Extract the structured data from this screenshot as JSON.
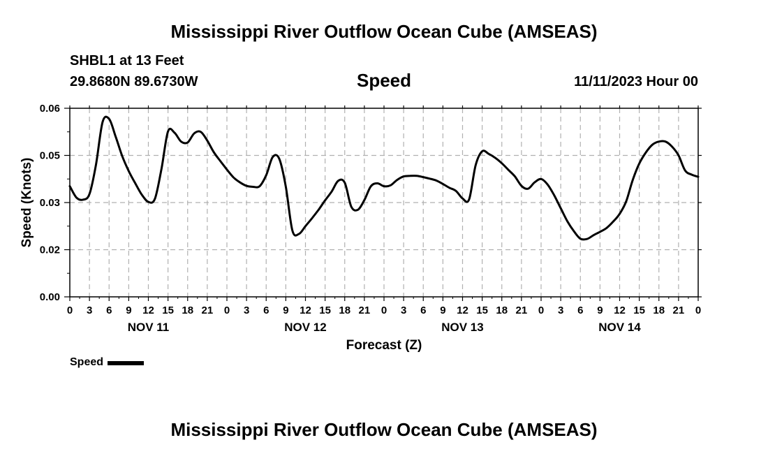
{
  "header": {
    "title": "Mississippi River Outflow Ocean Cube (AMSEAS)",
    "station": "SHBL1 at 13 Feet",
    "coordinates": "29.8680N  89.6730W",
    "variable": "Speed",
    "datetime": "11/11/2023 Hour 00"
  },
  "legend": {
    "label": "Speed"
  },
  "footer": {
    "title": "Mississippi River Outflow Ocean Cube (AMSEAS)"
  },
  "colors": {
    "line": "#000000",
    "grid": "#b0b0b0",
    "background": "#ffffff"
  },
  "chart_data": {
    "type": "line",
    "title": "Speed",
    "xlabel": "Forecast (Z)",
    "ylabel": "Speed (Knots)",
    "xlim": [
      0,
      96
    ],
    "ylim": [
      0,
      0.06
    ],
    "grid": true,
    "y_ticks": [
      {
        "value": 0,
        "label": "0.00"
      },
      {
        "value": 0.015,
        "label": "0.02"
      },
      {
        "value": 0.03,
        "label": "0.03"
      },
      {
        "value": 0.045,
        "label": "0.05"
      },
      {
        "value": 0.06,
        "label": "0.06"
      }
    ],
    "x_ticks": [
      0,
      3,
      6,
      9,
      12,
      15,
      18,
      21,
      24,
      27,
      30,
      33,
      36,
      39,
      42,
      45,
      48,
      51,
      54,
      57,
      60,
      63,
      66,
      69,
      72,
      75,
      78,
      81,
      84,
      87,
      90,
      93,
      96
    ],
    "x_tick_labels": [
      "0",
      "3",
      "6",
      "9",
      "12",
      "15",
      "18",
      "21",
      "0",
      "3",
      "6",
      "9",
      "12",
      "15",
      "18",
      "21",
      "0",
      "3",
      "6",
      "9",
      "12",
      "15",
      "18",
      "21",
      "0",
      "3",
      "6",
      "9",
      "12",
      "15",
      "18",
      "21",
      "0"
    ],
    "day_labels": [
      {
        "at": 12,
        "label": "NOV 11"
      },
      {
        "at": 36,
        "label": "NOV 12"
      },
      {
        "at": 60,
        "label": "NOV 13"
      },
      {
        "at": 84,
        "label": "NOV 14"
      }
    ],
    "series": [
      {
        "name": "Speed",
        "x": [
          0,
          1,
          2,
          3,
          4,
          5,
          6,
          7,
          8,
          9,
          10,
          11,
          12,
          13,
          14,
          15,
          16,
          17,
          18,
          19,
          20,
          21,
          22,
          23,
          24,
          25,
          26,
          27,
          28,
          29,
          30,
          31,
          32,
          33,
          34,
          35,
          36,
          37,
          38,
          39,
          40,
          41,
          42,
          43,
          44,
          45,
          46,
          47,
          48,
          49,
          50,
          51,
          52,
          53,
          54,
          55,
          56,
          57,
          58,
          59,
          60,
          61,
          62,
          63,
          64,
          65,
          66,
          67,
          68,
          69,
          70,
          71,
          72,
          73,
          74,
          75,
          76,
          77,
          78,
          79,
          80,
          81,
          82,
          83,
          84,
          85,
          86,
          87,
          88,
          89,
          90,
          91,
          92,
          93,
          94,
          95,
          96
        ],
        "values": [
          0.0352,
          0.0316,
          0.0309,
          0.0327,
          0.0421,
          0.0556,
          0.0566,
          0.051,
          0.0448,
          0.04,
          0.0361,
          0.0325,
          0.0302,
          0.0312,
          0.0407,
          0.0526,
          0.0522,
          0.0494,
          0.0491,
          0.052,
          0.0525,
          0.0497,
          0.046,
          0.0432,
          0.0405,
          0.038,
          0.0364,
          0.0353,
          0.035,
          0.0352,
          0.0387,
          0.0445,
          0.0439,
          0.035,
          0.0211,
          0.02,
          0.0225,
          0.025,
          0.0277,
          0.0307,
          0.0335,
          0.0369,
          0.0363,
          0.0287,
          0.0277,
          0.0308,
          0.0352,
          0.0361,
          0.0352,
          0.0355,
          0.0372,
          0.0383,
          0.0385,
          0.0385,
          0.0381,
          0.0376,
          0.037,
          0.0359,
          0.0347,
          0.0337,
          0.0313,
          0.031,
          0.0419,
          0.0463,
          0.0455,
          0.0442,
          0.0425,
          0.0404,
          0.0383,
          0.0353,
          0.0344,
          0.0364,
          0.0375,
          0.0357,
          0.0323,
          0.0282,
          0.0241,
          0.0209,
          0.0185,
          0.0184,
          0.0196,
          0.0207,
          0.0219,
          0.0239,
          0.0264,
          0.0304,
          0.0372,
          0.0424,
          0.0459,
          0.0484,
          0.0494,
          0.0494,
          0.0478,
          0.045,
          0.0402,
          0.0389,
          0.0382
        ]
      }
    ]
  }
}
